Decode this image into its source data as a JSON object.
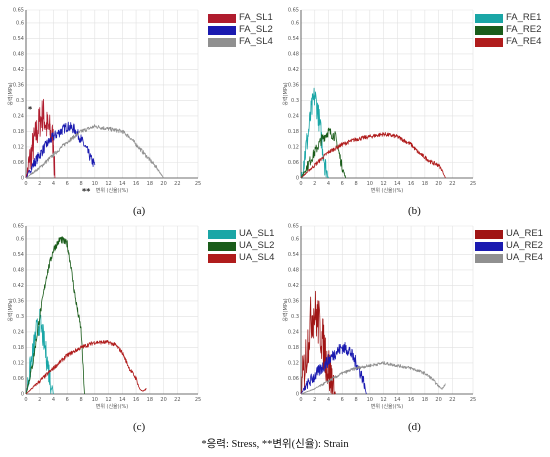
{
  "footer": "*응력: Stress, **변위(신율): Strain",
  "annotations": {
    "stress_marker": "*",
    "strain_marker": "**"
  },
  "chart_data": [
    {
      "type": "line",
      "panel_label": "(a)",
      "xlabel": "변위 (신율)(%)",
      "ylabel": "응력(MPa)",
      "xlim": [
        0,
        25
      ],
      "ylim": [
        0,
        0.65
      ],
      "xticks": [
        0,
        2,
        4,
        6,
        8,
        10,
        12,
        14,
        16,
        18,
        20,
        22,
        25
      ],
      "yticks": [
        0,
        0.06,
        0.12,
        0.18,
        0.24,
        0.3,
        0.36,
        0.42,
        0.48,
        0.54,
        0.6,
        0.65
      ],
      "legend_position": "top-right",
      "series": [
        {
          "name": "FA_SL1",
          "color": "#b01c2e",
          "noise": 0.07,
          "x": [
            0,
            0.5,
            1,
            1.5,
            2,
            2.5,
            3,
            3.5,
            4,
            4.2
          ],
          "y": [
            0,
            0.06,
            0.12,
            0.17,
            0.22,
            0.25,
            0.2,
            0.18,
            0.14,
            0
          ]
        },
        {
          "name": "FA_SL2",
          "color": "#1a1ab0",
          "noise": 0.02,
          "x": [
            0,
            1,
            2,
            3,
            4,
            5,
            6,
            7,
            8,
            9,
            9.5,
            10
          ],
          "y": [
            0,
            0.05,
            0.09,
            0.13,
            0.16,
            0.18,
            0.2,
            0.19,
            0.15,
            0.1,
            0.07,
            0.05
          ]
        },
        {
          "name": "FA_SL4",
          "color": "#909090",
          "noise": 0.008,
          "x": [
            0,
            2,
            4,
            6,
            8,
            10,
            12,
            14,
            15,
            16,
            17,
            18,
            19,
            19.5,
            20
          ],
          "y": [
            0,
            0.04,
            0.09,
            0.14,
            0.18,
            0.2,
            0.19,
            0.18,
            0.16,
            0.13,
            0.1,
            0.07,
            0.04,
            0.02,
            0
          ]
        }
      ]
    },
    {
      "type": "line",
      "panel_label": "(b)",
      "xlabel": "변위 (신율)(%)",
      "ylabel": "응력(MPa)",
      "xlim": [
        0,
        25
      ],
      "ylim": [
        0,
        0.65
      ],
      "xticks": [
        0,
        2,
        4,
        6,
        8,
        10,
        12,
        14,
        16,
        18,
        20,
        22,
        25
      ],
      "yticks": [
        0,
        0.06,
        0.12,
        0.18,
        0.24,
        0.3,
        0.36,
        0.42,
        0.48,
        0.54,
        0.6,
        0.65
      ],
      "legend_position": "top-right",
      "series": [
        {
          "name": "FA_RE1",
          "color": "#1aa6a6",
          "noise": 0.05,
          "x": [
            0,
            0.5,
            1,
            1.5,
            2,
            2.5,
            3,
            3.5,
            4
          ],
          "y": [
            0,
            0.08,
            0.16,
            0.26,
            0.32,
            0.25,
            0.15,
            0.05,
            0
          ]
        },
        {
          "name": "FA_RE2",
          "color": "#1a5c1a",
          "noise": 0.02,
          "x": [
            0,
            1,
            2,
            3,
            4,
            5,
            5.5,
            6,
            6.5
          ],
          "y": [
            0,
            0.05,
            0.1,
            0.15,
            0.18,
            0.16,
            0.1,
            0.04,
            0
          ]
        },
        {
          "name": "FA_RE4",
          "color": "#b01c1c",
          "noise": 0.008,
          "x": [
            0,
            2,
            4,
            6,
            8,
            10,
            12,
            14,
            16,
            17,
            18,
            19,
            20,
            20.5,
            21
          ],
          "y": [
            0,
            0.05,
            0.1,
            0.13,
            0.15,
            0.16,
            0.17,
            0.16,
            0.13,
            0.1,
            0.08,
            0.06,
            0.05,
            0.03,
            0
          ]
        }
      ]
    },
    {
      "type": "line",
      "panel_label": "(c)",
      "xlabel": "변위 (신율)(%)",
      "ylabel": "응력(MPa)",
      "xlim": [
        0,
        25
      ],
      "ylim": [
        0,
        0.65
      ],
      "xticks": [
        0,
        2,
        4,
        6,
        8,
        10,
        12,
        14,
        16,
        18,
        20,
        22,
        25
      ],
      "yticks": [
        0,
        0.06,
        0.12,
        0.18,
        0.24,
        0.3,
        0.36,
        0.42,
        0.48,
        0.54,
        0.6,
        0.65
      ],
      "legend_position": "top-right",
      "series": [
        {
          "name": "UA_SL1",
          "color": "#1aa6a6",
          "noise": 0.05,
          "x": [
            0,
            0.5,
            1,
            1.5,
            2,
            2.5,
            3,
            3.5,
            4
          ],
          "y": [
            0,
            0.08,
            0.16,
            0.24,
            0.28,
            0.22,
            0.14,
            0.06,
            0
          ]
        },
        {
          "name": "UA_SL2",
          "color": "#1a5c1a",
          "noise": 0.015,
          "x": [
            0,
            1,
            2,
            3,
            4,
            5,
            6,
            6.5,
            7,
            7.5,
            8,
            8.5
          ],
          "y": [
            0,
            0.12,
            0.3,
            0.46,
            0.56,
            0.6,
            0.58,
            0.5,
            0.4,
            0.32,
            0.25,
            0
          ]
        },
        {
          "name": "UA_SL4",
          "color": "#b01c1c",
          "noise": 0.008,
          "x": [
            0,
            2,
            4,
            6,
            8,
            10,
            12,
            13,
            14,
            15,
            16,
            16.5,
            17,
            17.5
          ],
          "y": [
            0,
            0.05,
            0.1,
            0.15,
            0.18,
            0.2,
            0.2,
            0.19,
            0.16,
            0.1,
            0.06,
            0.02,
            0.01,
            0.02
          ]
        }
      ]
    },
    {
      "type": "line",
      "panel_label": "(d)",
      "xlabel": "변위 (신율)(%)",
      "ylabel": "응력(MPa)",
      "xlim": [
        0,
        25
      ],
      "ylim": [
        0,
        0.65
      ],
      "xticks": [
        0,
        2,
        4,
        6,
        8,
        10,
        12,
        14,
        16,
        18,
        20,
        22,
        25
      ],
      "yticks": [
        0,
        0.06,
        0.12,
        0.18,
        0.24,
        0.3,
        0.36,
        0.42,
        0.48,
        0.54,
        0.6,
        0.65
      ],
      "legend_position": "top-right",
      "series": [
        {
          "name": "UA_RE1",
          "color": "#a01515",
          "noise": 0.1,
          "x": [
            0,
            0.5,
            1,
            1.5,
            2,
            2.5,
            3,
            3.5,
            4,
            4.5,
            5
          ],
          "y": [
            0,
            0.1,
            0.2,
            0.3,
            0.32,
            0.28,
            0.22,
            0.16,
            0.1,
            0.05,
            0
          ]
        },
        {
          "name": "UA_RE2",
          "color": "#1a1ab0",
          "noise": 0.025,
          "x": [
            0,
            1,
            2,
            3,
            4,
            5,
            6,
            7,
            8,
            9,
            9.5
          ],
          "y": [
            0,
            0.04,
            0.07,
            0.1,
            0.13,
            0.16,
            0.18,
            0.17,
            0.12,
            0.06,
            0
          ]
        },
        {
          "name": "UA_RE4",
          "color": "#909090",
          "noise": 0.006,
          "x": [
            0,
            2,
            4,
            6,
            8,
            10,
            12,
            14,
            16,
            18,
            19,
            20,
            20.5,
            21
          ],
          "y": [
            0,
            0.02,
            0.05,
            0.08,
            0.1,
            0.11,
            0.12,
            0.11,
            0.1,
            0.08,
            0.06,
            0.03,
            0.02,
            0.04
          ]
        }
      ]
    }
  ]
}
